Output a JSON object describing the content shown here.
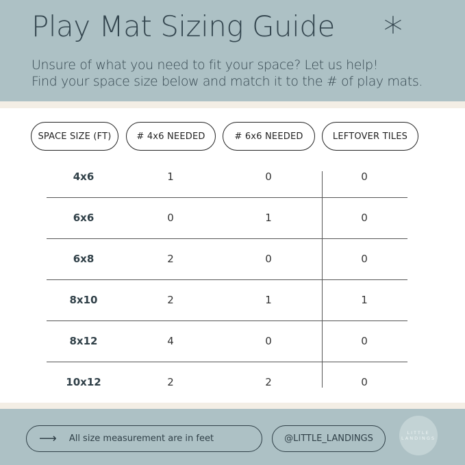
{
  "header": {
    "title": "Play Mat Sizing Guide",
    "subtitle_line1": "Unsure of what you need to fit your space? Let us help!",
    "subtitle_line2": "Find your space size below and match it to the # of play mats.",
    "decoration_icon": "asterisk-icon"
  },
  "table": {
    "columns": [
      "SPACE SIZE (FT)",
      "# 4x6 NEEDED",
      "# 6x6 NEEDED",
      "LEFTOVER TILES"
    ],
    "rows": [
      [
        "4x6",
        "1",
        "0",
        "0"
      ],
      [
        "6x6",
        "0",
        "1",
        "0"
      ],
      [
        "6x8",
        "2",
        "0",
        "0"
      ],
      [
        "8x10",
        "2",
        "1",
        "1"
      ],
      [
        "8x12",
        "4",
        "0",
        "0"
      ],
      [
        "10x12",
        "2",
        "2",
        "0"
      ]
    ]
  },
  "footer": {
    "note": "All size measurement are in feet",
    "note_icon": "arrow-right-icon",
    "handle": "@LITTLE_LANDINGS",
    "logo_line1": "LITTLE",
    "logo_line2": "LANDINGS"
  },
  "colors": {
    "header_bg": "#adc1c5",
    "accent_cream": "#f3eee5",
    "text": "#34464f"
  }
}
